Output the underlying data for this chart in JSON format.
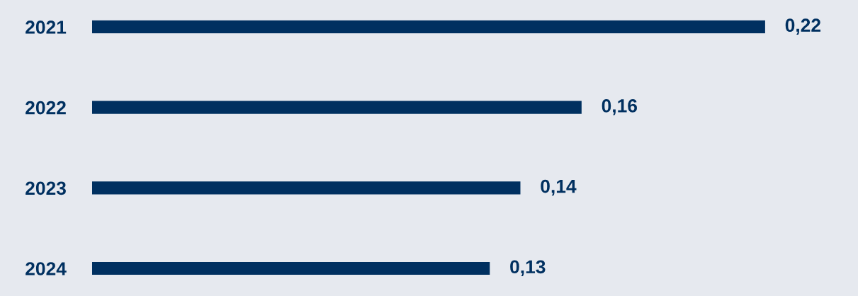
{
  "chart_data": {
    "type": "bar",
    "orientation": "horizontal",
    "categories": [
      "2021",
      "2022",
      "2023",
      "2024"
    ],
    "values": [
      0.22,
      0.16,
      0.14,
      0.13
    ],
    "value_labels": [
      "0,22",
      "0,16",
      "0,14",
      "0,13"
    ],
    "color": "#003060",
    "grid": false,
    "legend": false,
    "tick_labels": "y"
  }
}
